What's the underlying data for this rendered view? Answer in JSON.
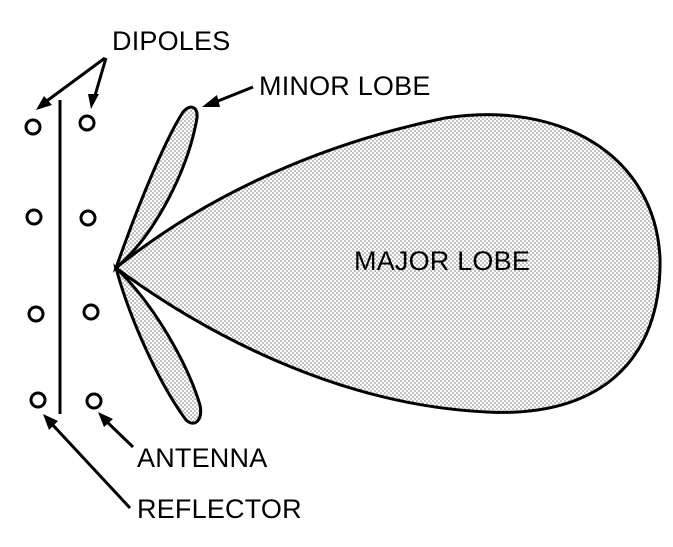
{
  "labels": {
    "dipoles": "DIPOLES",
    "minor_lobe": "MINOR LOBE",
    "major_lobe": "MAJOR LOBE",
    "antenna": "ANTENNA",
    "reflector": "REFLECTOR"
  },
  "colors": {
    "ink": "#000000",
    "paper": "#ffffff",
    "stipple": "#7a7a7a"
  }
}
